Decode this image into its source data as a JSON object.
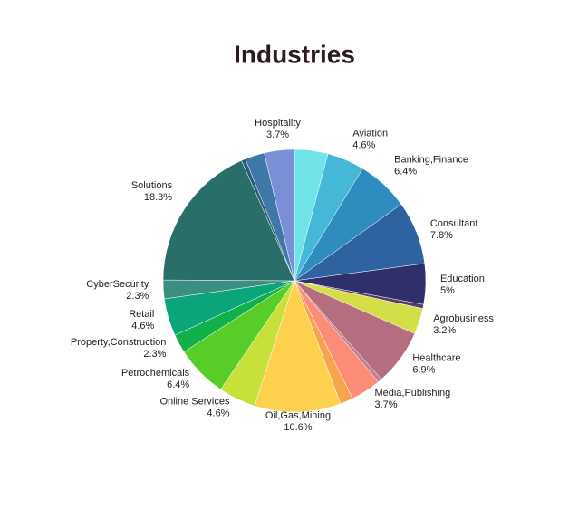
{
  "chart_data": {
    "type": "pie",
    "title": "Industries",
    "categories": [
      null,
      "Aviation",
      "Banking,Finance",
      "Consultant",
      "Education",
      null,
      "Agrobusiness",
      "Healthcare",
      null,
      "Media,Publishing",
      null,
      "Oil,Gas,Mining",
      "Online Services",
      "Petrochemicals",
      "Property,Construction",
      "Retail",
      "CyberSecurity",
      "Solutions",
      null,
      null,
      "Hospitality"
    ],
    "values": [
      4.1,
      4.6,
      6.4,
      7.8,
      5,
      0.5,
      3.2,
      6.9,
      0.5,
      3.7,
      1.6,
      10.6,
      4.6,
      6.4,
      2.3,
      4.6,
      2.3,
      18.3,
      0.5,
      2.4,
      3.7
    ],
    "value_labels": [
      null,
      "4.6%",
      "6.4%",
      "7.8%",
      "5%",
      null,
      "3.2%",
      "6.9%",
      null,
      "3.7%",
      null,
      "10.6%",
      "4.6%",
      "6.4%",
      "2.3%",
      "4.6%",
      "2.3%",
      "18.3%",
      null,
      null,
      "3.7%"
    ],
    "colors": [
      "#6fe3e8",
      "#45b8d8",
      "#2e8cbf",
      "#2f62a0",
      "#2e2f6b",
      "#5a3a6a",
      "#d4de48",
      "#b56e80",
      "#c08090",
      "#fa8c78",
      "#f7a44f",
      "#fdd04e",
      "#c8e03a",
      "#58cc28",
      "#12b04a",
      "#0aa57a",
      "#3a9080",
      "#2a6e6a",
      "#2a5a7a",
      "#3f78a8",
      "#7b8fd8"
    ]
  }
}
